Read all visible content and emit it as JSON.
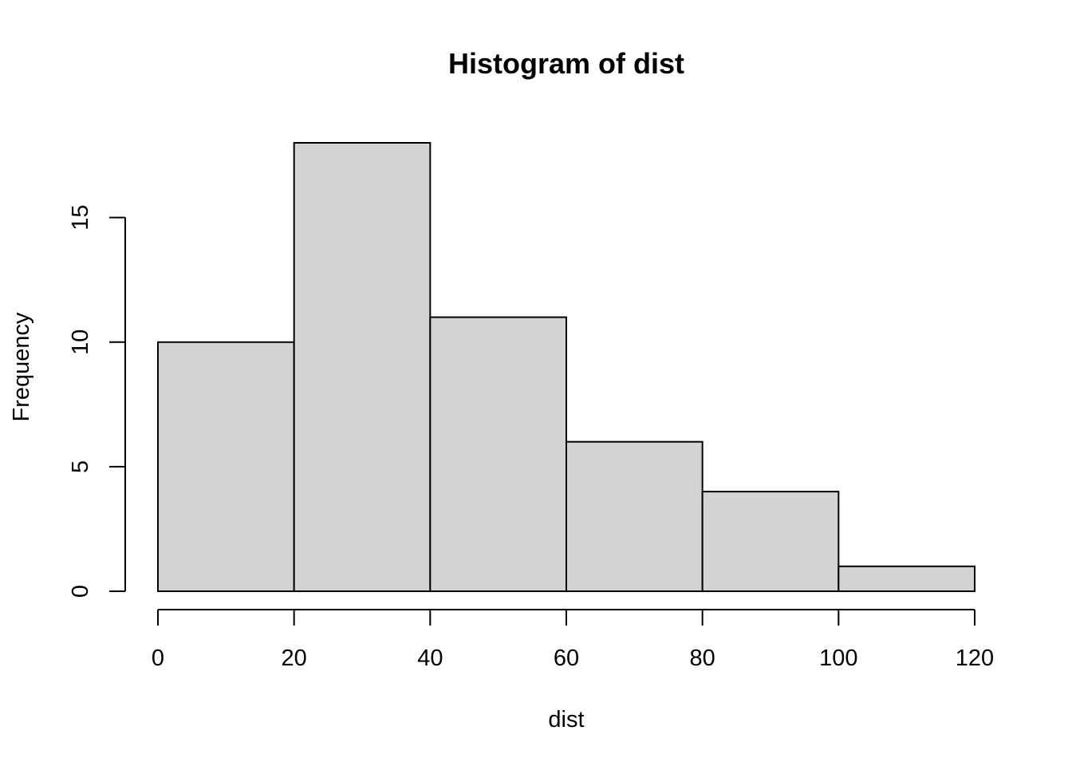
{
  "chart_data": {
    "type": "bar",
    "subtype": "histogram",
    "title": "Histogram of dist",
    "xlabel": "dist",
    "ylabel": "Frequency",
    "bin_edges": [
      0,
      20,
      40,
      60,
      80,
      100,
      120
    ],
    "values": [
      10,
      18,
      11,
      6,
      4,
      1
    ],
    "xlim": [
      0,
      120
    ],
    "ylim": [
      0,
      18
    ],
    "x_ticks": [
      0,
      20,
      40,
      60,
      80,
      100,
      120
    ],
    "y_ticks": [
      0,
      5,
      10,
      15
    ],
    "grid": false,
    "bar_fill": "#d3d3d3",
    "bar_stroke": "#000000"
  }
}
